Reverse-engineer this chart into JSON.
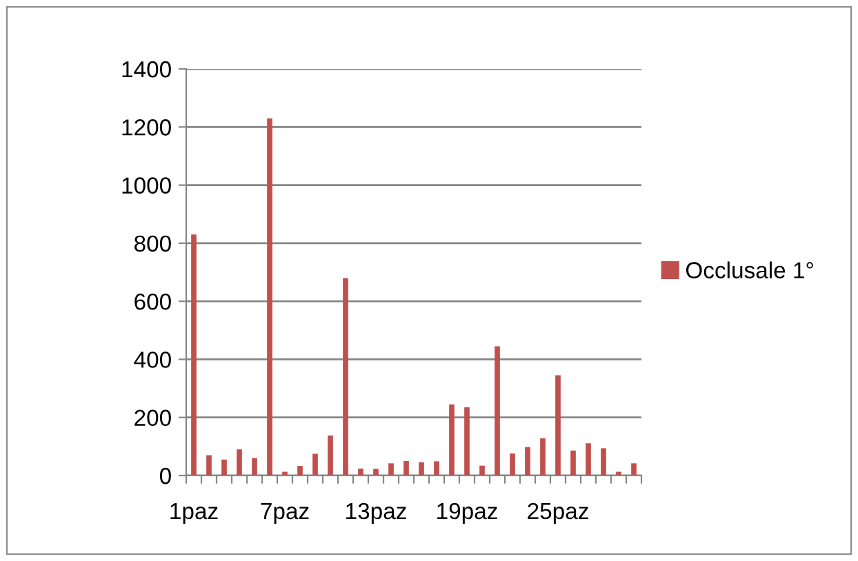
{
  "chart_data": {
    "type": "bar",
    "categories": [
      "1paz",
      null,
      null,
      null,
      null,
      null,
      "7paz",
      null,
      null,
      null,
      null,
      null,
      "13paz",
      null,
      null,
      null,
      null,
      null,
      "19paz",
      null,
      null,
      null,
      null,
      null,
      "25paz",
      null,
      null,
      null,
      null,
      null
    ],
    "series": [
      {
        "name": "Occlusale 1°",
        "color": "#c0504d",
        "values": [
          830,
          70,
          55,
          90,
          60,
          1230,
          13,
          33,
          75,
          138,
          680,
          24,
          23,
          42,
          50,
          46,
          49,
          245,
          235,
          34,
          445,
          76,
          98,
          128,
          345,
          86,
          111,
          94,
          13,
          42
        ]
      }
    ],
    "ylim": [
      0,
      1400
    ],
    "yticks": [
      0,
      200,
      400,
      600,
      800,
      1000,
      1200,
      1400
    ],
    "grid": "y",
    "legend": "right"
  }
}
